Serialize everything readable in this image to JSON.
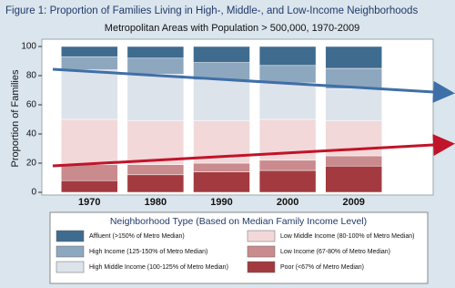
{
  "chart_data": {
    "type": "stacked_bar",
    "title": "Figure 1: Proportion of Families Living in High-, Middle-, and Low-Income Neighborhoods",
    "subtitle": "Metropolitan Areas with Population > 500,000, 1970-2009",
    "y_label": "Proportion of Families",
    "legend_title": "Neighborhood Type (Based on Median Family Income Level)",
    "categories": [
      "1970",
      "1980",
      "1990",
      "2000",
      "2009"
    ],
    "ylim": [
      0,
      100
    ],
    "yticks": [
      0,
      20,
      40,
      60,
      80,
      100
    ],
    "series": [
      {
        "name": "Affluent (>150% of Metro Median)",
        "color": "#3f6b8f",
        "values": [
          7,
          8,
          11,
          13,
          15
        ]
      },
      {
        "name": "High Income (125-150% of Metro Median)",
        "color": "#8da7be",
        "values": [
          9,
          11,
          12,
          12,
          14
        ]
      },
      {
        "name": "High Middle Income (100-125% of Metro Median)",
        "color": "#dde3eb",
        "values": [
          34,
          32,
          28,
          25,
          22
        ]
      },
      {
        "name": "Low Middle Income (80-100% of Metro Median)",
        "color": "#f2d8d9",
        "values": [
          31,
          30,
          29,
          28,
          24
        ]
      },
      {
        "name": "Low Income (67-80% of Metro Median)",
        "color": "#c98b8d",
        "values": [
          11,
          7,
          6,
          7,
          7
        ]
      },
      {
        "name": "Poor (<67% of Metro Median)",
        "color": "#a33a3f",
        "values": [
          8,
          12,
          14,
          15,
          18
        ]
      }
    ]
  }
}
